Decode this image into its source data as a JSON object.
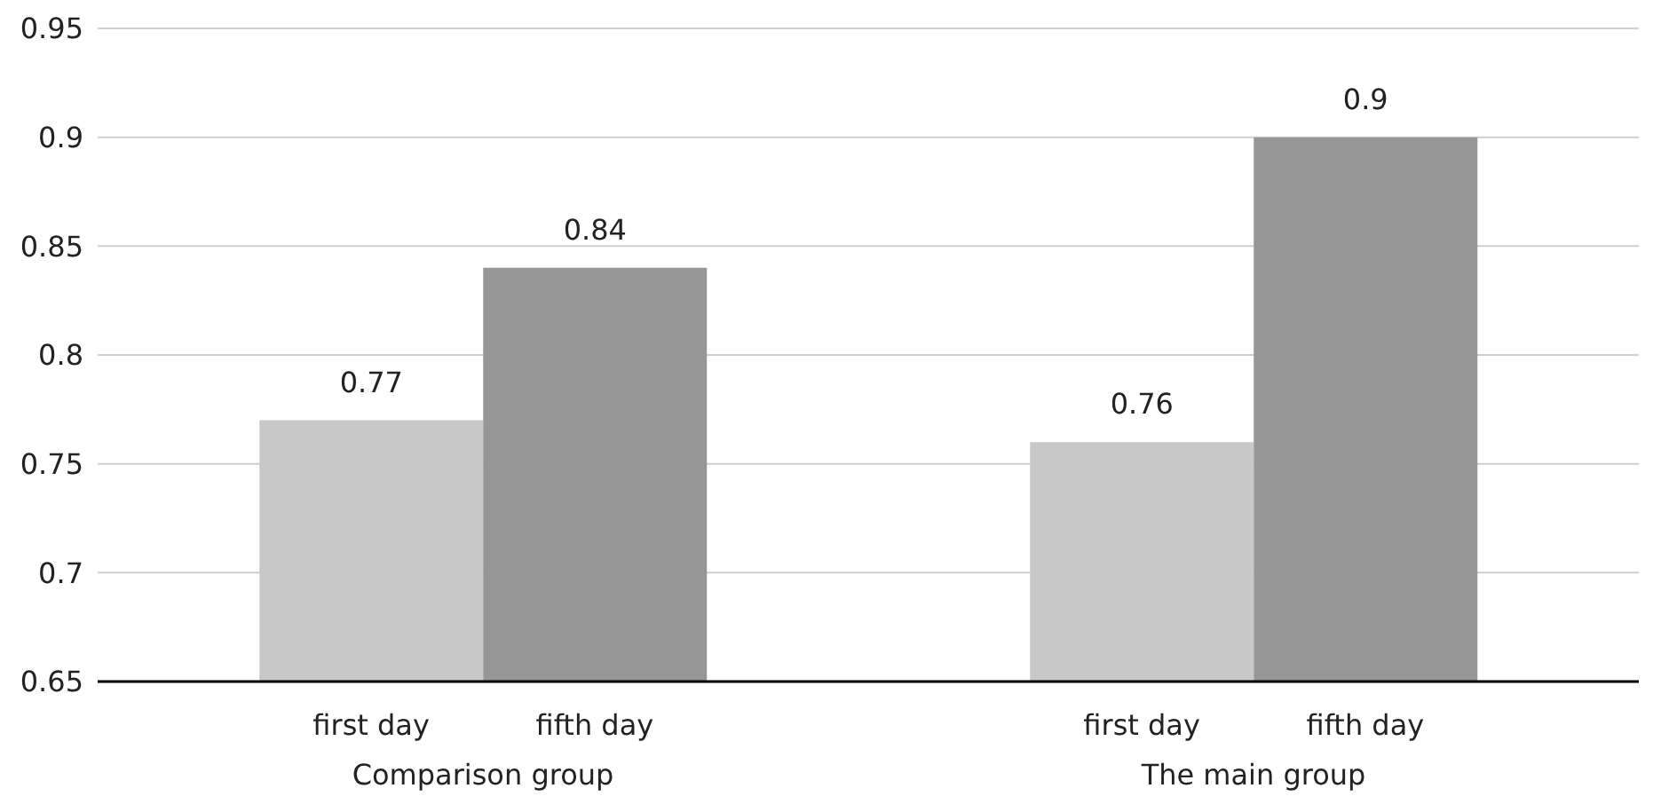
{
  "chart_data": {
    "type": "bar",
    "categories": [
      "Comparison group",
      "The main group"
    ],
    "series": [
      {
        "name": "first day",
        "color": "#c8c8c8",
        "values": [
          0.77,
          0.76
        ]
      },
      {
        "name": "fifth day",
        "color": "#969696",
        "values": [
          0.84,
          0.9
        ]
      }
    ],
    "ylim": [
      0.65,
      0.95
    ],
    "yticks": [
      0.65,
      0.7,
      0.75,
      0.8,
      0.85,
      0.9,
      0.95
    ],
    "grid": "y",
    "data_labels": true
  }
}
